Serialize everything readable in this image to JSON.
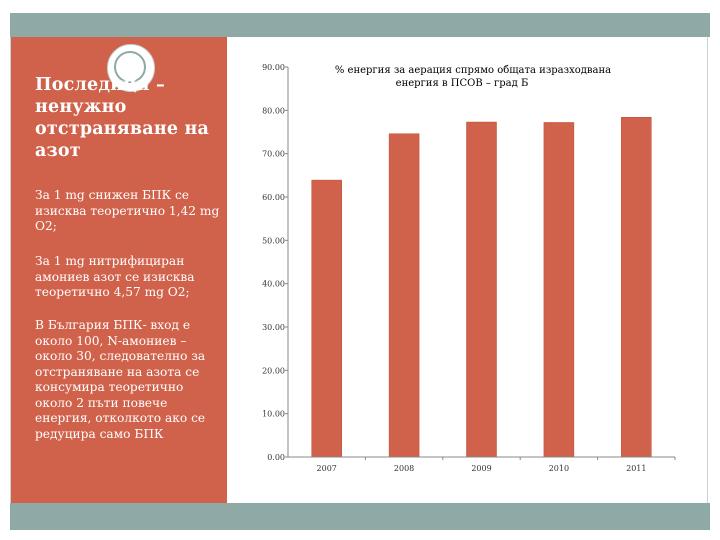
{
  "left_panel": {
    "title": "Последици – ненужно отстраняване на азот",
    "paragraphs": [
      "За 1 mg снижен БПК се изисква теоретично 1,42 mg O2;",
      "За 1 mg нитрифициран амониев азот се изисква теоретично 4,57 mg O2;",
      "В България БПК- вход е около 100, N-амониев – около 30, следователно за отстраняване на азота се консумира теоретично около 2 пъти повече енергия, отколкото ако се редуцира само БПК"
    ]
  },
  "colors": {
    "panel": "#d0614a",
    "bar": "#d0614a",
    "bar_border": "#c04a35",
    "accent_bars": "#8fa9a6"
  },
  "chart_data": {
    "type": "bar",
    "title_lines": [
      "% енергия за аерация спрямо общата изразходвана",
      "енергия в ПСОВ – град Б"
    ],
    "categories": [
      "2007",
      "2008",
      "2009",
      "2010",
      "2011"
    ],
    "values": [
      63.9,
      74.6,
      77.3,
      77.2,
      78.4
    ],
    "ylim": [
      0,
      90
    ],
    "yticks": [
      "0.00",
      "10.00",
      "20.00",
      "30.00",
      "40.00",
      "50.00",
      "60.00",
      "70.00",
      "80.00",
      "90.00"
    ],
    "xlabel": "",
    "ylabel": "",
    "grid": false,
    "legend": "none"
  }
}
